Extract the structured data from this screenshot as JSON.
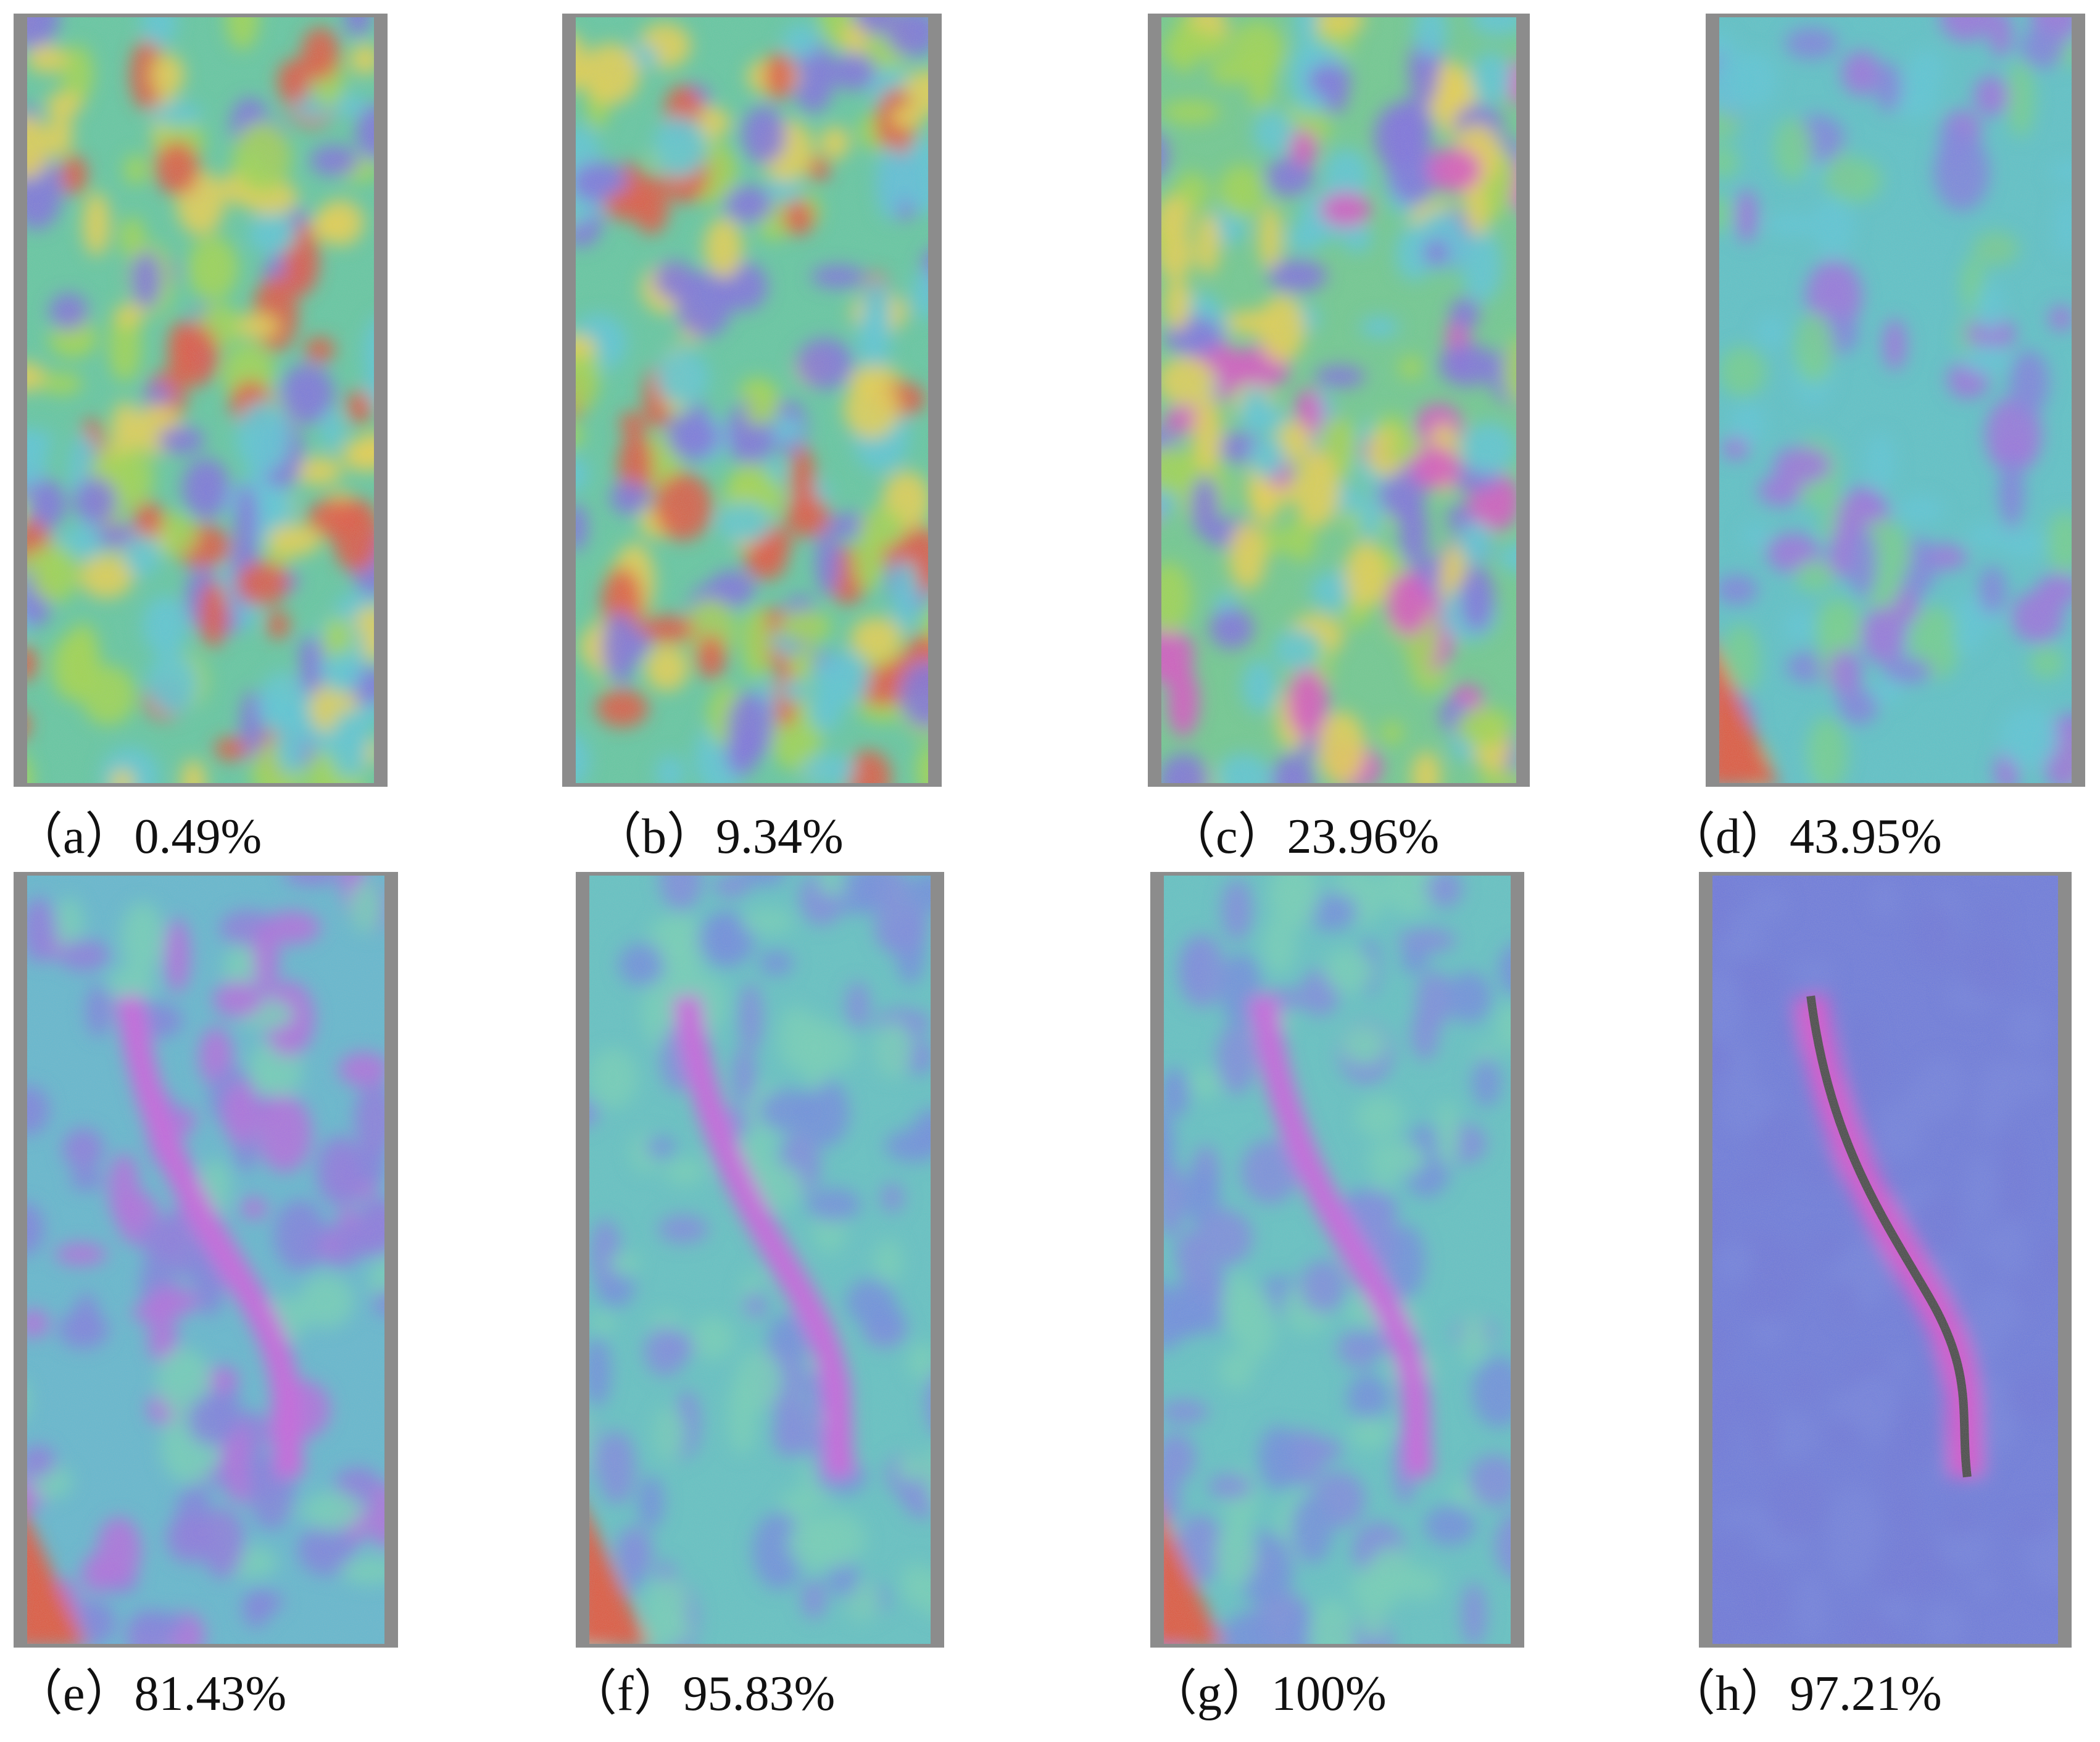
{
  "panels": [
    {
      "caption": "（a）0.49%"
    },
    {
      "caption": "（b）9.34%"
    },
    {
      "caption": "（c）23.96%"
    },
    {
      "caption": "（d）43.95%"
    },
    {
      "caption": "（e）81.43%"
    },
    {
      "caption": "（f）95.83%"
    },
    {
      "caption": "（g）100%"
    },
    {
      "caption": "（h）97.21%"
    }
  ]
}
